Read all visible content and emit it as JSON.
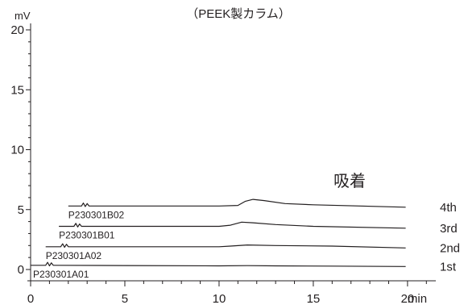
{
  "chart_data": {
    "type": "line",
    "title": "（PEEK製カラム）",
    "ylabel": "mV",
    "xlabel": "min",
    "xlim": [
      0,
      21.5
    ],
    "ylim": [
      0,
      20
    ],
    "x_ticks": [
      "0",
      "5",
      "10",
      "15",
      "20"
    ],
    "y_ticks": [
      "0",
      "5",
      "10",
      "15",
      "20"
    ],
    "annotation": "吸着",
    "series": [
      {
        "name": "1st",
        "sample_label": "P230301A01",
        "x": [
          0,
          0.8,
          0.9,
          1.0,
          1.1,
          1.2,
          1.3,
          5,
          10,
          11.5,
          13,
          16,
          19.9
        ],
        "y": [
          0.35,
          0.35,
          0.6,
          0.3,
          0.55,
          0.35,
          0.35,
          0.33,
          0.3,
          0.32,
          0.3,
          0.28,
          0.25
        ]
      },
      {
        "name": "2nd",
        "sample_label": "P230301A02",
        "x": [
          0.8,
          1.6,
          1.7,
          1.8,
          1.9,
          2.0,
          2.1,
          5,
          10,
          10.6,
          11.5,
          13,
          16,
          19.9
        ],
        "y": [
          1.9,
          1.9,
          2.15,
          1.85,
          2.1,
          1.9,
          1.9,
          1.9,
          1.9,
          1.95,
          2.05,
          2.0,
          1.95,
          1.8
        ]
      },
      {
        "name": "3rd",
        "sample_label": "P230301B01",
        "x": [
          1.5,
          2.3,
          2.4,
          2.5,
          2.6,
          2.7,
          2.8,
          5,
          10,
          10.6,
          11.2,
          11.8,
          13,
          15,
          19.9
        ],
        "y": [
          3.6,
          3.6,
          3.85,
          3.55,
          3.8,
          3.6,
          3.6,
          3.6,
          3.6,
          3.7,
          3.95,
          3.9,
          3.75,
          3.6,
          3.45
        ]
      },
      {
        "name": "4th",
        "sample_label": "P230301B02",
        "x": [
          2.0,
          2.7,
          2.8,
          2.9,
          3.0,
          3.1,
          3.2,
          5,
          10,
          11.0,
          11.4,
          11.8,
          12.4,
          13.5,
          15,
          19.9
        ],
        "y": [
          5.3,
          5.3,
          5.55,
          5.25,
          5.5,
          5.3,
          5.3,
          5.3,
          5.3,
          5.35,
          5.7,
          5.85,
          5.75,
          5.5,
          5.4,
          5.2
        ]
      }
    ]
  }
}
